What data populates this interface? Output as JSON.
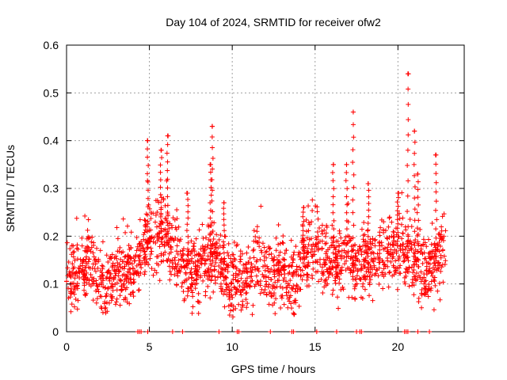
{
  "chart_data": {
    "type": "scatter",
    "title": "Day 104 of 2024, SRMTID for receiver ofw2",
    "xlabel": "GPS time / hours",
    "ylabel": "SRMTID / TECUs",
    "xlim": [
      0,
      24
    ],
    "ylim": [
      0,
      0.6
    ],
    "x_ticks": [
      "0",
      "5",
      "10",
      "15",
      "20"
    ],
    "y_ticks": [
      "0",
      "0.1",
      "0.2",
      "0.3",
      "0.4",
      "0.5",
      "0.6"
    ],
    "grid": true,
    "marker": "+",
    "series": [
      {
        "name": "SRMTID",
        "color": "#ff0000",
        "trend": {
          "x": [
            0,
            0.3,
            0.7,
            1,
            1.5,
            2,
            2.4,
            2.8,
            3.3,
            3.8,
            4.2,
            4.6,
            5,
            5.5,
            6,
            6.5,
            7,
            7.5,
            8,
            8.5,
            9,
            9.5,
            10,
            10.5,
            11,
            11.5,
            12,
            12.5,
            13,
            13.5,
            14,
            14.5,
            15,
            15.5,
            16,
            16.5,
            17,
            17.5,
            18,
            18.5,
            19,
            19.5,
            20,
            20.5,
            21,
            21.5,
            22,
            22.5,
            22.9
          ],
          "y": [
            0.13,
            0.12,
            0.11,
            0.13,
            0.14,
            0.1,
            0.09,
            0.11,
            0.13,
            0.12,
            0.14,
            0.17,
            0.2,
            0.19,
            0.2,
            0.16,
            0.14,
            0.13,
            0.12,
            0.15,
            0.17,
            0.13,
            0.12,
            0.11,
            0.12,
            0.14,
            0.13,
            0.12,
            0.13,
            0.11,
            0.12,
            0.16,
            0.18,
            0.16,
            0.15,
            0.14,
            0.15,
            0.14,
            0.14,
            0.15,
            0.16,
            0.17,
            0.18,
            0.16,
            0.14,
            0.13,
            0.12,
            0.15,
            0.17
          ]
        },
        "peaks": [
          {
            "x": 4.9,
            "y": 0.4
          },
          {
            "x": 5.7,
            "y": 0.38
          },
          {
            "x": 6.1,
            "y": 0.41
          },
          {
            "x": 7.3,
            "y": 0.29
          },
          {
            "x": 8.7,
            "y": 0.35
          },
          {
            "x": 8.8,
            "y": 0.43
          },
          {
            "x": 9.5,
            "y": 0.27
          },
          {
            "x": 14.3,
            "y": 0.26
          },
          {
            "x": 16.1,
            "y": 0.35
          },
          {
            "x": 16.9,
            "y": 0.35
          },
          {
            "x": 17.3,
            "y": 0.46
          },
          {
            "x": 18.2,
            "y": 0.31
          },
          {
            "x": 20.0,
            "y": 0.29
          },
          {
            "x": 20.6,
            "y": 0.54
          },
          {
            "x": 21.0,
            "y": 0.42
          },
          {
            "x": 21.2,
            "y": 0.33
          },
          {
            "x": 22.3,
            "y": 0.37
          }
        ],
        "zero_points_x": [
          4.3,
          4.4,
          4.5,
          4.9,
          6.4,
          7.0,
          9.2,
          10.3,
          10.4,
          12.3,
          13.6,
          13.7,
          15.1,
          16.3,
          17.5,
          17.7,
          17.8,
          20.4,
          20.5,
          20.6,
          21.2,
          21.9
        ]
      }
    ]
  }
}
